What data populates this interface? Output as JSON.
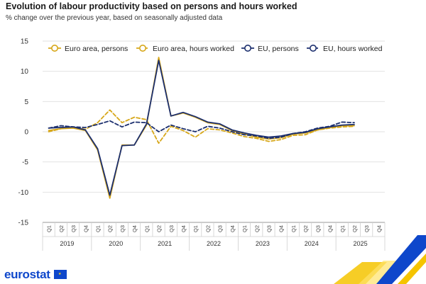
{
  "header": {
    "title": "Evolution of labour productivity based on persons and hours worked",
    "subtitle": "% change over the previous year, based on seasonally adjusted data"
  },
  "branding": {
    "logo_text": "eurostat"
  },
  "colors": {
    "euro_area": "#d7a719",
    "eu": "#1c2f6e",
    "grid": "#e2e2e2",
    "axis_text": "#333333"
  },
  "chart_data": {
    "type": "line",
    "title": "Evolution of labour productivity based on persons and hours worked",
    "subtitle": "% change over the previous year, based on seasonally adjusted data",
    "xlabel": "",
    "ylabel": "",
    "ylim": [
      -15,
      15
    ],
    "yticks": [
      15,
      10,
      5,
      0,
      -5,
      -10,
      -15
    ],
    "grid": true,
    "legend_position": "top",
    "quarters": [
      "Q1",
      "Q2",
      "Q3",
      "Q4",
      "Q1",
      "Q2",
      "Q3",
      "Q4",
      "Q1",
      "Q2",
      "Q3",
      "Q4",
      "Q1",
      "Q2",
      "Q3",
      "Q4",
      "Q1",
      "Q2",
      "Q3",
      "Q4",
      "Q1",
      "Q2",
      "Q3",
      "Q4",
      "Q1",
      "Q2",
      "Q3",
      "Q4"
    ],
    "years": [
      "2019",
      "2020",
      "2021",
      "2022",
      "2023",
      "2024",
      "2025"
    ],
    "series": [
      {
        "name": "Euro area, persons",
        "color": "#d7a719",
        "dashed": false,
        "values": [
          0.2,
          0.5,
          0.6,
          0.2,
          -3.0,
          -11.0,
          -2.2,
          -2.2,
          1.1,
          12.3,
          2.6,
          3.1,
          2.4,
          1.5,
          1.2,
          0.2,
          -0.4,
          -0.9,
          -1.2,
          -1.0,
          -0.4,
          -0.2,
          0.3,
          0.7,
          1.0,
          1.0,
          null,
          null
        ]
      },
      {
        "name": "Euro area, hours worked",
        "color": "#d7a719",
        "dashed": true,
        "values": [
          0.0,
          0.5,
          0.8,
          0.4,
          1.5,
          3.6,
          1.5,
          2.4,
          2.0,
          -1.9,
          0.9,
          0.2,
          -0.9,
          0.5,
          0.3,
          -0.2,
          -0.8,
          -1.1,
          -1.6,
          -1.3,
          -0.6,
          -0.5,
          0.3,
          0.6,
          0.8,
          0.9,
          null,
          null
        ]
      },
      {
        "name": "EU, persons",
        "color": "#1c2f6e",
        "dashed": false,
        "values": [
          0.6,
          0.7,
          0.8,
          0.3,
          -2.8,
          -10.5,
          -2.3,
          -2.2,
          1.3,
          11.8,
          2.6,
          3.2,
          2.5,
          1.6,
          1.3,
          0.3,
          -0.2,
          -0.6,
          -0.9,
          -0.7,
          -0.3,
          -0.1,
          0.5,
          0.8,
          1.1,
          1.2,
          null,
          null
        ]
      },
      {
        "name": "EU, hours worked",
        "color": "#1c2f6e",
        "dashed": true,
        "values": [
          0.6,
          1.0,
          0.8,
          0.7,
          1.2,
          1.8,
          0.8,
          1.6,
          1.5,
          0.0,
          1.1,
          0.5,
          0.0,
          0.9,
          0.6,
          0.0,
          -0.5,
          -0.7,
          -1.1,
          -0.9,
          -0.3,
          0.0,
          0.6,
          0.9,
          1.6,
          1.5,
          null,
          null
        ]
      }
    ]
  }
}
